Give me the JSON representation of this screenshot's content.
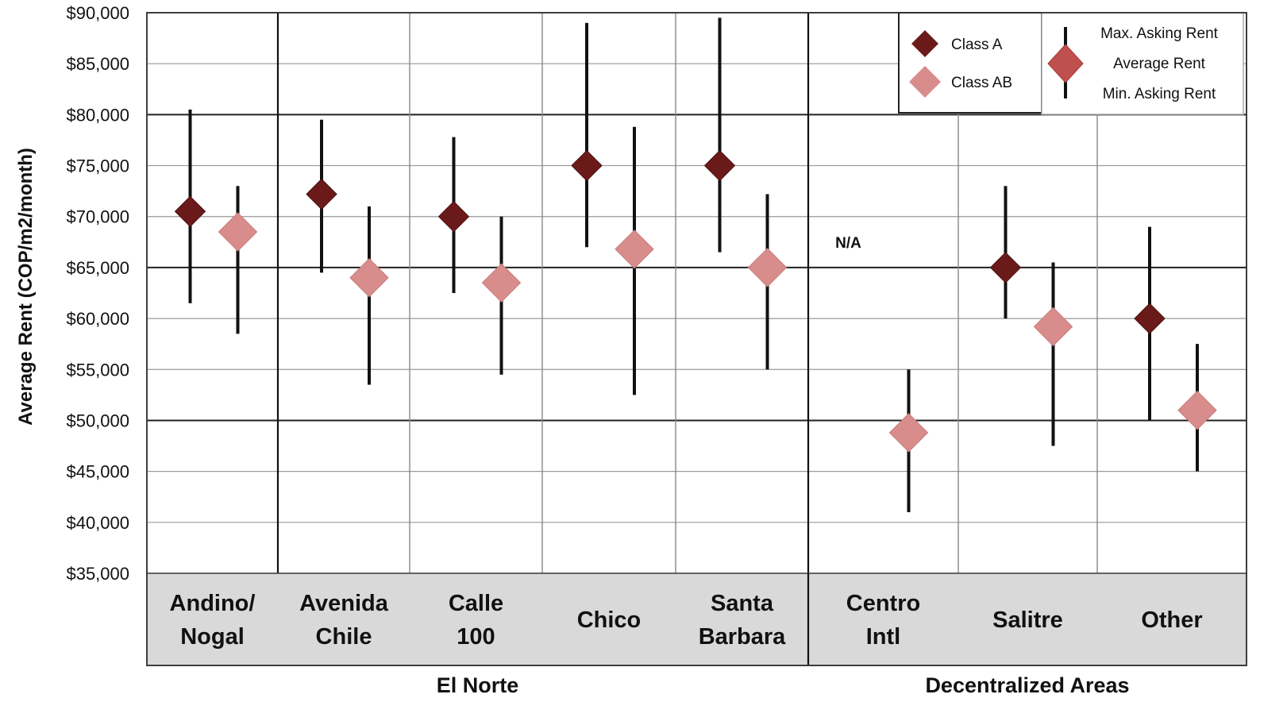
{
  "chart_data": {
    "type": "scatter",
    "title": "",
    "ylabel": "Average Rent (COP/m2/month)",
    "ylim": [
      35000,
      90000
    ],
    "yticks": [
      {
        "value": 90000,
        "label": "$90,000"
      },
      {
        "value": 85000,
        "label": "$85,000"
      },
      {
        "value": 80000,
        "label": "$80,000"
      },
      {
        "value": 75000,
        "label": "$75,000"
      },
      {
        "value": 70000,
        "label": "$70,000"
      },
      {
        "value": 65000,
        "label": "$65,000"
      },
      {
        "value": 60000,
        "label": "$60,000"
      },
      {
        "value": 55000,
        "label": "$55,000"
      },
      {
        "value": 50000,
        "label": "$50,000"
      },
      {
        "value": 45000,
        "label": "$45,000"
      },
      {
        "value": 40000,
        "label": "$40,000"
      },
      {
        "value": 35000,
        "label": "$35,000"
      }
    ],
    "categories": [
      {
        "lines": [
          "Andino/",
          "Nogal"
        ]
      },
      {
        "lines": [
          "Avenida",
          "Chile"
        ]
      },
      {
        "lines": [
          "Calle",
          "100"
        ]
      },
      {
        "lines": [
          "Chico"
        ]
      },
      {
        "lines": [
          "Santa",
          "Barbara"
        ]
      },
      {
        "lines": [
          "Centro",
          "Intl"
        ]
      },
      {
        "lines": [
          "Salitre"
        ]
      },
      {
        "lines": [
          "Other"
        ]
      }
    ],
    "groups": [
      {
        "label": "El Norte",
        "categories": [
          0,
          1,
          2,
          3,
          4
        ]
      },
      {
        "label": "Decentralized Areas",
        "categories": [
          5,
          6,
          7
        ]
      }
    ],
    "series": [
      {
        "name": "Class A",
        "color": "#6b1a1a",
        "points": [
          {
            "category": 0,
            "avg": 70500,
            "min": 61500,
            "max": 80500
          },
          {
            "category": 1,
            "avg": 72200,
            "min": 64500,
            "max": 79500
          },
          {
            "category": 2,
            "avg": 70000,
            "min": 62500,
            "max": 77800
          },
          {
            "category": 3,
            "avg": 75000,
            "min": 67000,
            "max": 89000
          },
          {
            "category": 4,
            "avg": 75000,
            "min": 66500,
            "max": 89500
          },
          {
            "category": 6,
            "avg": 65000,
            "min": 60000,
            "max": 73000
          },
          {
            "category": 7,
            "avg": 60000,
            "min": 50000,
            "max": 69000
          }
        ]
      },
      {
        "name": "Class AB",
        "color": "#d98c8c",
        "points": [
          {
            "category": 0,
            "avg": 68500,
            "min": 58500,
            "max": 73000
          },
          {
            "category": 1,
            "avg": 64000,
            "min": 53500,
            "max": 71000
          },
          {
            "category": 2,
            "avg": 63500,
            "min": 54500,
            "max": 70000
          },
          {
            "category": 3,
            "avg": 66800,
            "min": 52500,
            "max": 78800
          },
          {
            "category": 4,
            "avg": 65000,
            "min": 55000,
            "max": 72200
          },
          {
            "category": 5,
            "avg": 48800,
            "min": 41000,
            "max": 55000
          },
          {
            "category": 6,
            "avg": 59200,
            "min": 47500,
            "max": 65500
          },
          {
            "category": 7,
            "avg": 51000,
            "min": 45000,
            "max": 57500
          }
        ]
      }
    ],
    "annotations": [
      {
        "text": "N/A",
        "category": 5,
        "value": 67500
      }
    ],
    "legend": {
      "placement": "top-right",
      "series_entries": [
        "Class A",
        "Class AB"
      ],
      "key_labels": [
        "Max. Asking Rent",
        "Average Rent",
        "Min. Asking Rent"
      ],
      "key_color": "#c0504d"
    },
    "grid": true
  }
}
